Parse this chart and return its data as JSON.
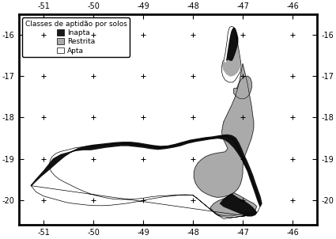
{
  "xlim": [
    -51.5,
    -45.5
  ],
  "ylim": [
    -20.6,
    -15.5
  ],
  "xticks": [
    -51,
    -50,
    -49,
    -48,
    -47,
    -46
  ],
  "yticks": [
    -16,
    -17,
    -18,
    -19,
    -20
  ],
  "cross_positions": [
    [
      -51,
      -16
    ],
    [
      -50,
      -16
    ],
    [
      -49,
      -16
    ],
    [
      -48,
      -16
    ],
    [
      -47,
      -16
    ],
    [
      -46,
      -16
    ],
    [
      -51,
      -17
    ],
    [
      -50,
      -17
    ],
    [
      -49,
      -17
    ],
    [
      -48,
      -17
    ],
    [
      -47,
      -17
    ],
    [
      -46,
      -17
    ],
    [
      -51,
      -18
    ],
    [
      -50,
      -18
    ],
    [
      -49,
      -18
    ],
    [
      -48,
      -18
    ],
    [
      -47,
      -18
    ],
    [
      -46,
      -18
    ],
    [
      -51,
      -19
    ],
    [
      -50,
      -19
    ],
    [
      -49,
      -19
    ],
    [
      -48,
      -19
    ],
    [
      -47,
      -19
    ],
    [
      -46,
      -19
    ],
    [
      -51,
      -20
    ],
    [
      -50,
      -20
    ],
    [
      -49,
      -20
    ],
    [
      -48,
      -20
    ],
    [
      -47,
      -20
    ],
    [
      -46,
      -20
    ]
  ],
  "legend_title": "Classes de aptidão por solos",
  "legend_items": [
    {
      "label": "Inapta",
      "color": "#1a1a1a"
    },
    {
      "label": "Restrita",
      "color": "#aaaaaa"
    },
    {
      "label": "Apta",
      "color": "#ffffff"
    }
  ],
  "background_color": "#ffffff",
  "font_size": 7,
  "legend_font_size": 6.5,
  "outer_boundary": [
    [
      -51.25,
      -19.65
    ],
    [
      -51.15,
      -19.45
    ],
    [
      -51.0,
      -19.25
    ],
    [
      -50.9,
      -19.1
    ],
    [
      -50.8,
      -18.95
    ],
    [
      -50.65,
      -18.82
    ],
    [
      -50.5,
      -18.78
    ],
    [
      -50.35,
      -18.73
    ],
    [
      -50.2,
      -18.71
    ],
    [
      -50.05,
      -18.7
    ],
    [
      -49.9,
      -18.68
    ],
    [
      -49.75,
      -18.66
    ],
    [
      -49.6,
      -18.64
    ],
    [
      -49.45,
      -18.63
    ],
    [
      -49.3,
      -18.63
    ],
    [
      -49.15,
      -18.65
    ],
    [
      -49.0,
      -18.67
    ],
    [
      -48.85,
      -18.7
    ],
    [
      -48.7,
      -18.73
    ],
    [
      -48.55,
      -18.72
    ],
    [
      -48.4,
      -18.68
    ],
    [
      -48.25,
      -18.62
    ],
    [
      -48.1,
      -18.58
    ],
    [
      -47.95,
      -18.55
    ],
    [
      -47.8,
      -18.52
    ],
    [
      -47.65,
      -18.5
    ],
    [
      -47.5,
      -18.47
    ],
    [
      -47.38,
      -18.45
    ],
    [
      -47.28,
      -18.47
    ],
    [
      -47.2,
      -18.52
    ],
    [
      -47.15,
      -18.6
    ],
    [
      -47.1,
      -18.72
    ],
    [
      -47.05,
      -18.85
    ],
    [
      -47.0,
      -19.0
    ],
    [
      -46.95,
      -19.15
    ],
    [
      -46.88,
      -19.3
    ],
    [
      -46.82,
      -19.48
    ],
    [
      -46.77,
      -19.65
    ],
    [
      -46.72,
      -19.82
    ],
    [
      -46.68,
      -20.0
    ],
    [
      -46.65,
      -20.15
    ],
    [
      -46.7,
      -20.28
    ],
    [
      -46.82,
      -20.35
    ],
    [
      -46.95,
      -20.38
    ],
    [
      -47.1,
      -20.4
    ],
    [
      -47.25,
      -20.42
    ],
    [
      -47.4,
      -20.4
    ],
    [
      -47.52,
      -20.35
    ],
    [
      -47.62,
      -20.25
    ],
    [
      -47.72,
      -20.15
    ],
    [
      -47.82,
      -20.05
    ],
    [
      -47.92,
      -19.95
    ],
    [
      -48.0,
      -19.88
    ],
    [
      -48.1,
      -19.87
    ],
    [
      -48.25,
      -19.87
    ],
    [
      -48.4,
      -19.88
    ],
    [
      -48.55,
      -19.89
    ],
    [
      -48.7,
      -19.9
    ],
    [
      -48.85,
      -19.92
    ],
    [
      -49.0,
      -19.95
    ],
    [
      -49.15,
      -19.97
    ],
    [
      -49.3,
      -19.98
    ],
    [
      -49.45,
      -19.98
    ],
    [
      -49.6,
      -19.97
    ],
    [
      -49.75,
      -19.94
    ],
    [
      -49.9,
      -19.9
    ],
    [
      -50.05,
      -19.85
    ],
    [
      -50.2,
      -19.78
    ],
    [
      -50.35,
      -19.7
    ],
    [
      -50.48,
      -19.62
    ],
    [
      -50.6,
      -19.55
    ],
    [
      -50.7,
      -19.48
    ],
    [
      -50.78,
      -19.4
    ],
    [
      -50.85,
      -19.3
    ],
    [
      -50.88,
      -19.18
    ],
    [
      -50.87,
      -19.05
    ],
    [
      -50.83,
      -18.95
    ],
    [
      -50.75,
      -18.87
    ],
    [
      -50.65,
      -18.82
    ],
    [
      -51.0,
      -19.1
    ],
    [
      -51.15,
      -19.35
    ],
    [
      -51.25,
      -19.55
    ],
    [
      -51.25,
      -19.65
    ]
  ],
  "main_boundary_south": [
    [
      -51.25,
      -19.65
    ],
    [
      -51.15,
      -19.8
    ],
    [
      -51.0,
      -19.9
    ],
    [
      -50.85,
      -19.95
    ],
    [
      -50.7,
      -20.0
    ],
    [
      -50.55,
      -20.05
    ],
    [
      -50.4,
      -20.08
    ],
    [
      -50.25,
      -20.1
    ],
    [
      -50.1,
      -20.12
    ],
    [
      -49.95,
      -20.13
    ],
    [
      -49.8,
      -20.13
    ],
    [
      -49.65,
      -20.12
    ],
    [
      -49.5,
      -20.1
    ],
    [
      -49.35,
      -20.08
    ],
    [
      -49.2,
      -20.05
    ],
    [
      -49.05,
      -20.02
    ],
    [
      -48.9,
      -19.98
    ],
    [
      -48.75,
      -19.95
    ],
    [
      -48.6,
      -19.92
    ],
    [
      -48.45,
      -19.9
    ],
    [
      -48.3,
      -19.88
    ],
    [
      -48.15,
      -19.87
    ],
    [
      -48.0,
      -19.88
    ],
    [
      -47.92,
      -19.95
    ],
    [
      -47.82,
      -20.05
    ],
    [
      -47.72,
      -20.15
    ],
    [
      -47.62,
      -20.25
    ],
    [
      -47.52,
      -20.35
    ],
    [
      -47.4,
      -20.4
    ],
    [
      -47.25,
      -20.42
    ],
    [
      -47.1,
      -20.4
    ],
    [
      -46.95,
      -20.38
    ],
    [
      -46.82,
      -20.35
    ],
    [
      -46.7,
      -20.28
    ],
    [
      -46.65,
      -20.15
    ],
    [
      -46.68,
      -20.0
    ],
    [
      -46.72,
      -19.82
    ],
    [
      -46.77,
      -19.65
    ],
    [
      -46.82,
      -19.48
    ],
    [
      -46.88,
      -19.3
    ],
    [
      -46.95,
      -19.15
    ],
    [
      -47.0,
      -19.0
    ],
    [
      -47.05,
      -18.85
    ],
    [
      -47.1,
      -18.72
    ],
    [
      -47.15,
      -18.6
    ],
    [
      -47.2,
      -18.52
    ],
    [
      -47.28,
      -18.47
    ],
    [
      -47.38,
      -18.45
    ],
    [
      -47.5,
      -18.47
    ],
    [
      -47.65,
      -18.5
    ],
    [
      -47.8,
      -18.52
    ],
    [
      -47.95,
      -18.55
    ],
    [
      -48.1,
      -18.58
    ],
    [
      -48.25,
      -18.62
    ],
    [
      -48.4,
      -18.68
    ],
    [
      -48.55,
      -18.72
    ],
    [
      -48.7,
      -18.73
    ],
    [
      -48.85,
      -18.7
    ],
    [
      -49.0,
      -18.67
    ],
    [
      -49.15,
      -18.65
    ],
    [
      -49.3,
      -18.63
    ],
    [
      -49.45,
      -18.63
    ],
    [
      -49.6,
      -18.64
    ],
    [
      -49.75,
      -18.66
    ],
    [
      -49.9,
      -18.68
    ],
    [
      -50.05,
      -18.7
    ],
    [
      -50.2,
      -18.71
    ],
    [
      -50.35,
      -18.73
    ],
    [
      -50.5,
      -18.78
    ],
    [
      -50.65,
      -18.82
    ],
    [
      -50.8,
      -18.95
    ],
    [
      -50.9,
      -19.1
    ],
    [
      -51.0,
      -19.25
    ],
    [
      -51.15,
      -19.45
    ],
    [
      -51.25,
      -19.65
    ]
  ],
  "apta_region": [
    [
      -51.25,
      -19.65
    ],
    [
      -51.15,
      -19.8
    ],
    [
      -51.0,
      -19.9
    ],
    [
      -50.85,
      -19.95
    ],
    [
      -50.7,
      -20.0
    ],
    [
      -50.55,
      -20.05
    ],
    [
      -50.4,
      -20.08
    ],
    [
      -50.25,
      -20.1
    ],
    [
      -50.1,
      -20.12
    ],
    [
      -49.95,
      -20.13
    ],
    [
      -49.8,
      -20.13
    ],
    [
      -49.65,
      -20.12
    ],
    [
      -49.5,
      -20.1
    ],
    [
      -49.35,
      -20.08
    ],
    [
      -49.2,
      -20.05
    ],
    [
      -49.05,
      -20.02
    ],
    [
      -48.9,
      -19.98
    ],
    [
      -48.75,
      -19.95
    ],
    [
      -48.6,
      -19.92
    ],
    [
      -48.45,
      -19.9
    ],
    [
      -48.3,
      -19.88
    ],
    [
      -48.15,
      -19.87
    ],
    [
      -48.0,
      -19.88
    ],
    [
      -47.92,
      -19.95
    ],
    [
      -47.82,
      -20.05
    ],
    [
      -47.72,
      -20.15
    ],
    [
      -47.62,
      -20.25
    ],
    [
      -47.52,
      -20.35
    ],
    [
      -47.4,
      -20.4
    ],
    [
      -47.25,
      -20.42
    ],
    [
      -47.1,
      -20.4
    ],
    [
      -46.95,
      -20.38
    ],
    [
      -46.82,
      -20.35
    ],
    [
      -46.7,
      -20.28
    ],
    [
      -46.65,
      -20.15
    ],
    [
      -46.68,
      -20.0
    ],
    [
      -46.72,
      -19.82
    ],
    [
      -46.77,
      -19.65
    ],
    [
      -46.82,
      -19.48
    ],
    [
      -46.88,
      -19.3
    ],
    [
      -46.95,
      -19.15
    ],
    [
      -47.0,
      -19.0
    ],
    [
      -47.05,
      -18.85
    ],
    [
      -47.1,
      -18.72
    ],
    [
      -47.15,
      -18.6
    ],
    [
      -47.2,
      -18.52
    ],
    [
      -47.28,
      -18.47
    ],
    [
      -47.38,
      -18.45
    ],
    [
      -47.5,
      -18.47
    ],
    [
      -47.65,
      -18.5
    ],
    [
      -47.8,
      -18.52
    ],
    [
      -47.95,
      -18.55
    ],
    [
      -48.1,
      -18.58
    ],
    [
      -48.25,
      -18.62
    ],
    [
      -48.4,
      -18.68
    ],
    [
      -48.55,
      -18.72
    ],
    [
      -48.7,
      -18.73
    ],
    [
      -48.85,
      -18.7
    ],
    [
      -49.0,
      -18.67
    ],
    [
      -49.15,
      -18.65
    ],
    [
      -49.3,
      -18.63
    ],
    [
      -49.45,
      -18.63
    ],
    [
      -49.6,
      -18.64
    ],
    [
      -49.75,
      -18.66
    ],
    [
      -49.9,
      -18.68
    ],
    [
      -50.05,
      -18.7
    ],
    [
      -50.2,
      -18.71
    ],
    [
      -50.35,
      -18.73
    ],
    [
      -50.5,
      -18.78
    ],
    [
      -50.65,
      -18.82
    ],
    [
      -50.75,
      -18.87
    ],
    [
      -50.83,
      -18.95
    ],
    [
      -50.87,
      -19.05
    ],
    [
      -50.88,
      -19.18
    ],
    [
      -50.85,
      -19.3
    ],
    [
      -50.78,
      -19.4
    ],
    [
      -50.7,
      -19.48
    ],
    [
      -50.6,
      -19.55
    ],
    [
      -50.48,
      -19.62
    ],
    [
      -50.35,
      -19.7
    ],
    [
      -50.2,
      -19.78
    ],
    [
      -50.05,
      -19.85
    ],
    [
      -49.9,
      -19.9
    ],
    [
      -49.75,
      -19.94
    ],
    [
      -49.6,
      -19.97
    ],
    [
      -49.45,
      -19.98
    ],
    [
      -49.3,
      -19.98
    ],
    [
      -49.15,
      -19.97
    ],
    [
      -49.0,
      -19.95
    ],
    [
      -48.85,
      -19.92
    ],
    [
      -48.7,
      -19.9
    ],
    [
      -48.55,
      -19.89
    ],
    [
      -48.4,
      -19.88
    ],
    [
      -48.25,
      -19.87
    ],
    [
      -48.1,
      -19.87
    ],
    [
      -48.0,
      -19.88
    ],
    [
      -47.92,
      -19.95
    ],
    [
      -47.72,
      -20.15
    ],
    [
      -47.52,
      -20.35
    ],
    [
      -47.38,
      -20.45
    ],
    [
      -47.1,
      -20.4
    ],
    [
      -46.95,
      -20.38
    ],
    [
      -51.25,
      -19.65
    ]
  ],
  "restrita_region": [
    [
      -47.38,
      -18.1
    ],
    [
      -47.3,
      -17.9
    ],
    [
      -47.22,
      -17.7
    ],
    [
      -47.15,
      -17.5
    ],
    [
      -47.1,
      -17.3
    ],
    [
      -47.06,
      -17.1
    ],
    [
      -47.03,
      -16.9
    ],
    [
      -47.0,
      -16.7
    ],
    [
      -46.97,
      -16.85
    ],
    [
      -46.94,
      -17.0
    ],
    [
      -46.91,
      -17.15
    ],
    [
      -46.88,
      -17.35
    ],
    [
      -46.85,
      -17.55
    ],
    [
      -46.82,
      -17.75
    ],
    [
      -46.8,
      -17.95
    ],
    [
      -46.78,
      -18.1
    ],
    [
      -46.78,
      -18.25
    ],
    [
      -46.8,
      -18.38
    ],
    [
      -46.83,
      -18.52
    ],
    [
      -46.87,
      -18.65
    ],
    [
      -46.91,
      -18.78
    ],
    [
      -46.95,
      -18.9
    ],
    [
      -46.98,
      -19.05
    ],
    [
      -47.0,
      -19.2
    ],
    [
      -47.0,
      -19.35
    ],
    [
      -47.02,
      -19.5
    ],
    [
      -47.05,
      -19.62
    ],
    [
      -47.1,
      -19.73
    ],
    [
      -47.18,
      -19.82
    ],
    [
      -47.28,
      -19.88
    ],
    [
      -47.4,
      -19.92
    ],
    [
      -47.52,
      -19.93
    ],
    [
      -47.62,
      -19.9
    ],
    [
      -47.72,
      -19.85
    ],
    [
      -47.82,
      -19.78
    ],
    [
      -47.9,
      -19.68
    ],
    [
      -47.95,
      -19.58
    ],
    [
      -47.98,
      -19.45
    ],
    [
      -47.98,
      -19.32
    ],
    [
      -47.95,
      -19.2
    ],
    [
      -47.9,
      -19.1
    ],
    [
      -47.83,
      -19.02
    ],
    [
      -47.75,
      -18.95
    ],
    [
      -47.65,
      -18.9
    ],
    [
      -47.55,
      -18.87
    ],
    [
      -47.45,
      -18.85
    ],
    [
      -47.35,
      -18.83
    ],
    [
      -47.3,
      -18.75
    ],
    [
      -47.35,
      -18.62
    ],
    [
      -47.4,
      -18.5
    ],
    [
      -47.42,
      -18.35
    ],
    [
      -47.4,
      -18.2
    ],
    [
      -47.38,
      -18.1
    ]
  ],
  "restrita_south": [
    [
      -47.18,
      -19.82
    ],
    [
      -47.08,
      -19.88
    ],
    [
      -46.98,
      -19.95
    ],
    [
      -46.88,
      -20.02
    ],
    [
      -46.78,
      -20.08
    ],
    [
      -46.72,
      -20.15
    ],
    [
      -46.75,
      -20.25
    ],
    [
      -46.82,
      -20.3
    ],
    [
      -46.95,
      -20.33
    ],
    [
      -47.08,
      -20.35
    ],
    [
      -47.22,
      -20.38
    ],
    [
      -47.35,
      -20.38
    ],
    [
      -47.48,
      -20.35
    ],
    [
      -47.58,
      -20.28
    ],
    [
      -47.65,
      -20.18
    ],
    [
      -47.58,
      -20.08
    ],
    [
      -47.5,
      -20.02
    ],
    [
      -47.4,
      -19.97
    ],
    [
      -47.3,
      -19.93
    ],
    [
      -47.18,
      -19.82
    ]
  ],
  "inapta_band": [
    [
      -51.25,
      -19.65
    ],
    [
      -51.05,
      -19.45
    ],
    [
      -50.88,
      -19.28
    ],
    [
      -50.72,
      -19.12
    ],
    [
      -50.58,
      -18.98
    ],
    [
      -50.45,
      -18.88
    ],
    [
      -50.32,
      -18.8
    ],
    [
      -50.18,
      -18.75
    ],
    [
      -50.05,
      -18.72
    ],
    [
      -49.9,
      -18.7
    ],
    [
      -49.75,
      -18.68
    ],
    [
      -49.6,
      -18.66
    ],
    [
      -49.45,
      -18.65
    ],
    [
      -49.3,
      -18.65
    ],
    [
      -49.15,
      -18.67
    ],
    [
      -49.0,
      -18.69
    ],
    [
      -48.85,
      -18.72
    ],
    [
      -48.7,
      -18.75
    ],
    [
      -48.55,
      -18.74
    ],
    [
      -48.4,
      -18.7
    ],
    [
      -48.25,
      -18.65
    ],
    [
      -48.1,
      -18.6
    ],
    [
      -47.95,
      -18.57
    ],
    [
      -47.8,
      -18.55
    ],
    [
      -47.65,
      -18.52
    ],
    [
      -47.5,
      -18.5
    ],
    [
      -47.4,
      -18.5
    ],
    [
      -47.35,
      -18.55
    ],
    [
      -47.3,
      -18.65
    ],
    [
      -47.28,
      -18.47
    ],
    [
      -47.38,
      -18.45
    ],
    [
      -47.5,
      -18.47
    ],
    [
      -47.65,
      -18.5
    ],
    [
      -47.8,
      -18.52
    ],
    [
      -47.95,
      -18.55
    ],
    [
      -48.1,
      -18.58
    ],
    [
      -48.25,
      -18.62
    ],
    [
      -48.4,
      -18.68
    ],
    [
      -48.55,
      -18.72
    ],
    [
      -48.7,
      -18.73
    ],
    [
      -48.85,
      -18.7
    ],
    [
      -49.0,
      -18.67
    ],
    [
      -49.15,
      -18.65
    ],
    [
      -49.3,
      -18.63
    ],
    [
      -49.45,
      -18.63
    ],
    [
      -49.6,
      -18.64
    ],
    [
      -49.75,
      -18.66
    ],
    [
      -49.9,
      -18.68
    ],
    [
      -50.05,
      -18.7
    ],
    [
      -50.2,
      -18.71
    ],
    [
      -50.35,
      -18.73
    ],
    [
      -50.5,
      -18.78
    ],
    [
      -50.65,
      -18.82
    ],
    [
      -50.8,
      -18.95
    ],
    [
      -50.9,
      -19.1
    ],
    [
      -51.0,
      -19.25
    ],
    [
      -51.15,
      -19.45
    ],
    [
      -51.25,
      -19.65
    ]
  ],
  "peninsula_white": [
    [
      -47.38,
      -16.62
    ],
    [
      -47.35,
      -16.45
    ],
    [
      -47.33,
      -16.28
    ],
    [
      -47.31,
      -16.12
    ],
    [
      -47.3,
      -15.98
    ],
    [
      -47.28,
      -15.88
    ],
    [
      -47.26,
      -15.82
    ],
    [
      -47.22,
      -15.8
    ],
    [
      -47.18,
      -15.82
    ],
    [
      -47.15,
      -15.88
    ],
    [
      -47.13,
      -15.98
    ],
    [
      -47.12,
      -16.1
    ],
    [
      -47.1,
      -16.22
    ],
    [
      -47.08,
      -16.35
    ],
    [
      -47.06,
      -16.5
    ],
    [
      -47.04,
      -16.65
    ],
    [
      -47.03,
      -16.78
    ],
    [
      -47.05,
      -16.9
    ],
    [
      -47.1,
      -17.0
    ],
    [
      -47.15,
      -17.1
    ],
    [
      -47.2,
      -17.15
    ],
    [
      -47.28,
      -17.15
    ],
    [
      -47.35,
      -17.1
    ],
    [
      -47.4,
      -17.0
    ],
    [
      -47.42,
      -16.9
    ],
    [
      -47.42,
      -16.78
    ],
    [
      -47.4,
      -16.65
    ],
    [
      -47.38,
      -16.62
    ]
  ],
  "peninsula_gray": [
    [
      -47.33,
      -16.7
    ],
    [
      -47.3,
      -16.55
    ],
    [
      -47.28,
      -16.38
    ],
    [
      -47.25,
      -16.22
    ],
    [
      -47.22,
      -16.08
    ],
    [
      -47.2,
      -15.98
    ],
    [
      -47.18,
      -15.92
    ],
    [
      -47.15,
      -15.95
    ],
    [
      -47.13,
      -16.05
    ],
    [
      -47.12,
      -16.18
    ],
    [
      -47.1,
      -16.32
    ],
    [
      -47.08,
      -16.48
    ],
    [
      -47.06,
      -16.62
    ],
    [
      -47.05,
      -16.75
    ],
    [
      -47.08,
      -16.85
    ],
    [
      -47.12,
      -16.92
    ],
    [
      -47.18,
      -16.98
    ],
    [
      -47.25,
      -17.0
    ],
    [
      -47.32,
      -16.95
    ],
    [
      -47.38,
      -16.85
    ],
    [
      -47.4,
      -16.75
    ],
    [
      -47.38,
      -16.65
    ],
    [
      -47.33,
      -16.7
    ]
  ],
  "peninsula_bulge_gray": [
    [
      -47.12,
      -17.3
    ],
    [
      -47.08,
      -17.18
    ],
    [
      -47.03,
      -17.08
    ],
    [
      -46.97,
      -17.02
    ],
    [
      -46.9,
      -17.0
    ],
    [
      -46.85,
      -17.05
    ],
    [
      -46.82,
      -17.15
    ],
    [
      -46.82,
      -17.28
    ],
    [
      -46.85,
      -17.4
    ],
    [
      -46.9,
      -17.5
    ],
    [
      -46.97,
      -17.55
    ],
    [
      -47.05,
      -17.55
    ],
    [
      -47.12,
      -17.5
    ],
    [
      -47.18,
      -17.42
    ],
    [
      -47.18,
      -17.3
    ],
    [
      -47.12,
      -17.3
    ]
  ]
}
